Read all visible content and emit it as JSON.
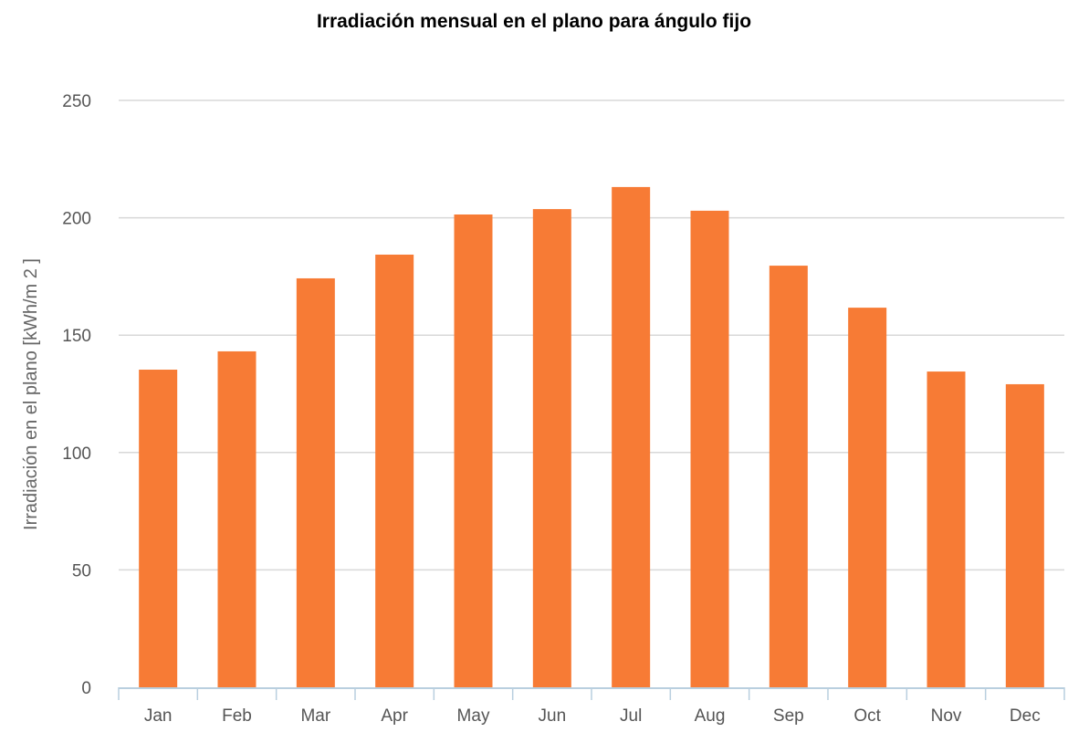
{
  "chart_data": {
    "type": "bar",
    "title": "Irradiación mensual en el plano para ángulo fijo",
    "xlabel": "",
    "ylabel": "Irradiación en el plano [kWh/m 2 ]",
    "categories": [
      "Jan",
      "Feb",
      "Mar",
      "Apr",
      "May",
      "Jun",
      "Jul",
      "Aug",
      "Sep",
      "Oct",
      "Nov",
      "Dec"
    ],
    "values": [
      135.3,
      143.1,
      174.2,
      184.3,
      201.4,
      203.7,
      213.1,
      203.0,
      179.6,
      161.7,
      134.5,
      129.1
    ],
    "ylim": [
      0,
      250
    ],
    "yticks": [
      0,
      50,
      100,
      150,
      200,
      250
    ],
    "grid": true,
    "bar_color": "#f77b35"
  }
}
